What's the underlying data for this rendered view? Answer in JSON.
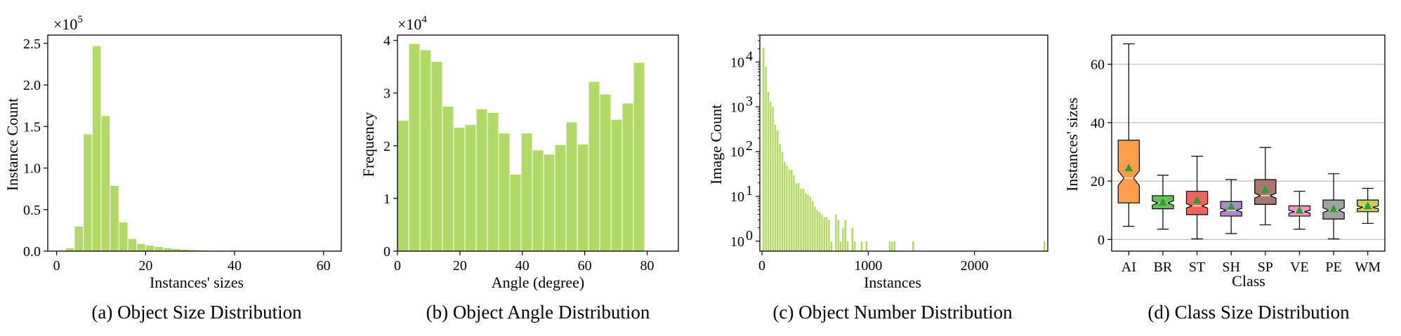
{
  "colors": {
    "histogram": "#b2d965",
    "axis": "#000000",
    "grid": "#b0b0b0",
    "mean_marker": "#2ca02c",
    "box_colors": [
      "#ff9e4a",
      "#67bf5c",
      "#ed665d",
      "#ad8bc9",
      "#a8786e",
      "#ed97ca",
      "#a2a2a2",
      "#cdcc5d"
    ]
  },
  "chart_data": [
    {
      "type": "bar",
      "id": "size",
      "caption": "(a) Object Size Distribution",
      "xlabel": "Instances' sizes",
      "ylabel": "Instance Count",
      "multiplier": {
        "base": "×10",
        "exp": "5"
      },
      "xlim": [
        -2,
        64
      ],
      "ylim": [
        0,
        2.6
      ],
      "xticks": [
        0,
        20,
        40,
        60
      ],
      "yticks": [
        0.0,
        0.5,
        1.0,
        1.5,
        2.0,
        2.5
      ],
      "ytick_labels": [
        "0.0",
        "0.5",
        "1.0",
        "1.5",
        "2.0",
        "2.5"
      ],
      "bin_start": 2,
      "bin_width": 2,
      "values": [
        0.04,
        0.3,
        1.41,
        2.47,
        1.63,
        0.79,
        0.35,
        0.15,
        0.09,
        0.07,
        0.055,
        0.04,
        0.03,
        0.022,
        0.016,
        0.012,
        0.009,
        0.007,
        0.005,
        0.004,
        0.003,
        0.002,
        0.002,
        0.001,
        0.001,
        0.001,
        0.001,
        0.001
      ]
    },
    {
      "type": "bar",
      "id": "angle",
      "caption": "(b) Object Angle Distribution",
      "xlabel": "Angle (degree)",
      "ylabel": "Frequency",
      "multiplier": {
        "base": "×10",
        "exp": "4"
      },
      "xlim": [
        0,
        90
      ],
      "ylim": [
        0,
        4.1
      ],
      "xticks": [
        0,
        20,
        40,
        60,
        80
      ],
      "yticks": [
        0,
        1,
        2,
        3,
        4
      ],
      "ytick_labels": [
        "0",
        "1",
        "2",
        "3",
        "4"
      ],
      "bin_start": 0,
      "bin_width": 3.6,
      "values": [
        2.48,
        3.94,
        3.82,
        3.6,
        2.75,
        2.35,
        2.4,
        2.7,
        2.63,
        2.24,
        1.46,
        2.24,
        1.92,
        1.84,
        2.02,
        2.45,
        2.03,
        3.22,
        2.98,
        2.5,
        2.81,
        3.58
      ]
    },
    {
      "type": "bar",
      "id": "number",
      "caption": "(c) Object Number Distribution",
      "xlabel": "Instances",
      "ylabel": "Image Count",
      "log_y": true,
      "xlim": [
        -20,
        2690
      ],
      "ylim": [
        0.6,
        40000
      ],
      "xticks": [
        0,
        1000,
        2000
      ],
      "yticks": [
        1,
        10,
        100,
        1000,
        10000
      ],
      "ytick_labels": [
        "10",
        "10",
        "10",
        "10",
        "10"
      ],
      "ytick_exps": [
        "0",
        "1",
        "2",
        "3",
        "4"
      ],
      "bin_width": 22,
      "x": [
        15,
        37,
        59,
        81,
        103,
        125,
        147,
        169,
        191,
        213,
        235,
        257,
        279,
        301,
        323,
        345,
        367,
        389,
        411,
        433,
        455,
        477,
        499,
        521,
        543,
        565,
        587,
        609,
        631,
        653,
        697,
        719,
        741,
        763,
        785,
        807,
        851,
        873,
        939,
        983,
        1203,
        1225,
        1247,
        1423,
        2659
      ],
      "values": [
        21000,
        8000,
        2200,
        1300,
        1000,
        400,
        300,
        150,
        100,
        60,
        50,
        40,
        40,
        30,
        20,
        20,
        15,
        15,
        12,
        11,
        10,
        8,
        6,
        5,
        4.5,
        4,
        3.5,
        3.5,
        3,
        1,
        4,
        3,
        1,
        2,
        3,
        1,
        2,
        1,
        1,
        1,
        1,
        1,
        1,
        1,
        1
      ]
    },
    {
      "type": "box",
      "id": "class",
      "caption": "(d) Class Size Distribution",
      "xlabel": "Class",
      "ylabel": "Instances' sizes",
      "ylim": [
        -4,
        70
      ],
      "yticks": [
        0,
        20,
        40,
        60
      ],
      "ytick_labels": [
        "0",
        "20",
        "40",
        "60"
      ],
      "grid": true,
      "categories": [
        "AI",
        "BR",
        "ST",
        "SH",
        "SP",
        "VE",
        "PE",
        "WM"
      ],
      "boxes": [
        {
          "whislo": 4.5,
          "q1": 12.5,
          "med": 21.0,
          "q3": 34.0,
          "whishi": 67.0,
          "mean": 24.5,
          "notch": [
            18.5,
            23.5
          ]
        },
        {
          "whislo": 3.5,
          "q1": 10.5,
          "med": 12.5,
          "q3": 15.0,
          "whishi": 22.0,
          "mean": 12.8,
          "notch": [
            11.8,
            13.2
          ]
        },
        {
          "whislo": 0.2,
          "q1": 8.5,
          "med": 11.5,
          "q3": 16.5,
          "whishi": 28.5,
          "mean": 13.5,
          "notch": [
            10.8,
            12.2
          ]
        },
        {
          "whislo": 2.0,
          "q1": 8.0,
          "med": 10.0,
          "q3": 13.0,
          "whishi": 20.5,
          "mean": 11.3,
          "notch": [
            9.4,
            10.6
          ]
        },
        {
          "whislo": 5.0,
          "q1": 12.0,
          "med": 15.0,
          "q3": 20.5,
          "whishi": 31.5,
          "mean": 17.0,
          "notch": [
            14.2,
            15.8
          ]
        },
        {
          "whislo": 3.5,
          "q1": 8.0,
          "med": 9.5,
          "q3": 11.5,
          "whishi": 16.5,
          "mean": 10.0,
          "notch": [
            9.0,
            10.0
          ]
        },
        {
          "whislo": 0.2,
          "q1": 7.0,
          "med": 10.0,
          "q3": 13.5,
          "whishi": 22.5,
          "mean": 10.5,
          "notch": [
            9.2,
            10.8
          ]
        },
        {
          "whislo": 5.5,
          "q1": 9.5,
          "med": 11.0,
          "q3": 13.5,
          "whishi": 17.5,
          "mean": 11.5,
          "notch": [
            10.5,
            11.5
          ]
        }
      ]
    }
  ]
}
